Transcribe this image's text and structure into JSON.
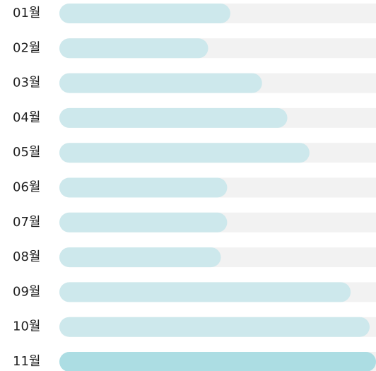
{
  "chart_data": {
    "type": "bar",
    "orientation": "horizontal",
    "categories": [
      "01월",
      "02월",
      "03월",
      "04월",
      "05월",
      "06월",
      "07월",
      "08월",
      "09월",
      "10월",
      "11월"
    ],
    "values": [
      54,
      47,
      64,
      72,
      79,
      53,
      53,
      51,
      92,
      98,
      100
    ],
    "colors": [
      "#cde8ec",
      "#cde8ec",
      "#cde8ec",
      "#cde8ec",
      "#cde8ec",
      "#cde8ec",
      "#cde8ec",
      "#cde8ec",
      "#cde8ec",
      "#cde8ec",
      "#acdde3"
    ],
    "track_color": "#f2f2f2",
    "xlim": [
      0,
      100
    ]
  }
}
